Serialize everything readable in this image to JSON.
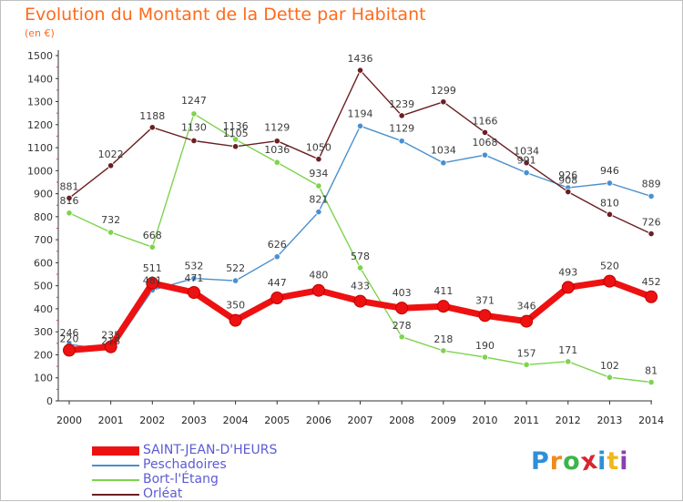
{
  "header": {
    "title": "Evolution du Montant de la Dette par Habitant",
    "subtitle": "(en €)"
  },
  "logo": {
    "letters": [
      "P",
      "r",
      "o",
      "x",
      "i",
      "t",
      "i"
    ],
    "colors": [
      "#2f8fd8",
      "#f08a1d",
      "#3db54a",
      "#d8262f",
      "#2f8fd8",
      "#f0b81d",
      "#8a3fb0"
    ]
  },
  "chart_data": {
    "type": "line",
    "title": "Evolution du Montant de la Dette par Habitant",
    "ylabel": "(en €)",
    "xlabel": "",
    "x": [
      "2000",
      "2001",
      "2002",
      "2003",
      "2004",
      "2005",
      "2006",
      "2007",
      "2008",
      "2009",
      "2010",
      "2011",
      "2012",
      "2013",
      "2014"
    ],
    "ylim": [
      0,
      1500
    ],
    "yticks": [
      0,
      100,
      200,
      300,
      400,
      500,
      600,
      700,
      800,
      900,
      1000,
      1100,
      1200,
      1300,
      1400,
      1500
    ],
    "grid": false,
    "legend": "bottom-left",
    "series": [
      {
        "name": "SAINT-JEAN-D'HEURS",
        "color": "#ee1111",
        "values": [
          220,
          235,
          511,
          471,
          350,
          447,
          480,
          433,
          403,
          411,
          371,
          346,
          493,
          520,
          452
        ]
      },
      {
        "name": "Peschadoires",
        "color": "#4b8fce",
        "values": [
          246,
          218,
          481,
          532,
          522,
          626,
          821,
          1194,
          1129,
          1034,
          1068,
          991,
          926,
          946,
          889
        ]
      },
      {
        "name": "Bort-l'Étang",
        "color": "#7ed34e",
        "values": [
          816,
          732,
          668,
          1247,
          1136,
          1036,
          934,
          578,
          278,
          218,
          190,
          157,
          171,
          102,
          81
        ]
      },
      {
        "name": "Orléat",
        "color": "#6b1f22",
        "values": [
          881,
          1022,
          1188,
          1130,
          1105,
          1129,
          1050,
          1436,
          1239,
          1299,
          1166,
          1034,
          908,
          810,
          726
        ]
      }
    ]
  }
}
